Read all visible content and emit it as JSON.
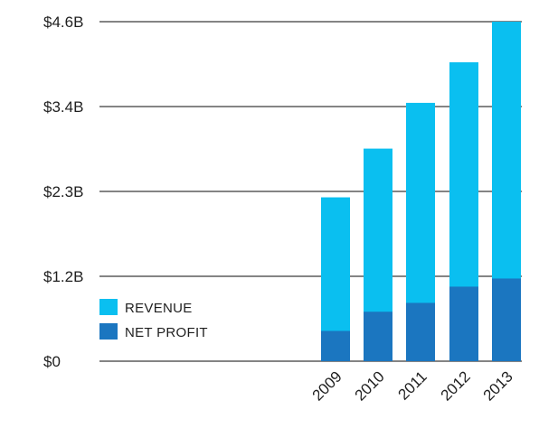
{
  "chart_data": {
    "type": "bar",
    "stacked": false,
    "overlay": true,
    "categories": [
      "2009",
      "2010",
      "2011",
      "2012",
      "2013"
    ],
    "series": [
      {
        "name": "REVENUE",
        "values": [
          2.22,
          2.88,
          3.5,
          4.05,
          4.6
        ],
        "color": "#0abff0"
      },
      {
        "name": "NET PROFIT",
        "values": [
          0.41,
          0.67,
          0.79,
          1.01,
          1.12
        ],
        "color": "#1b76c0"
      }
    ],
    "y_ticks": [
      "$4.6B",
      "$3.4B",
      "$2.3B",
      "$1.2B",
      "$0"
    ],
    "y_tick_values": [
      4.6,
      3.45,
      2.3,
      1.15,
      0
    ],
    "ylim": [
      0,
      4.6
    ],
    "grid": true,
    "legend_position": "bottom-left",
    "title": "",
    "xlabel": "",
    "ylabel": ""
  }
}
